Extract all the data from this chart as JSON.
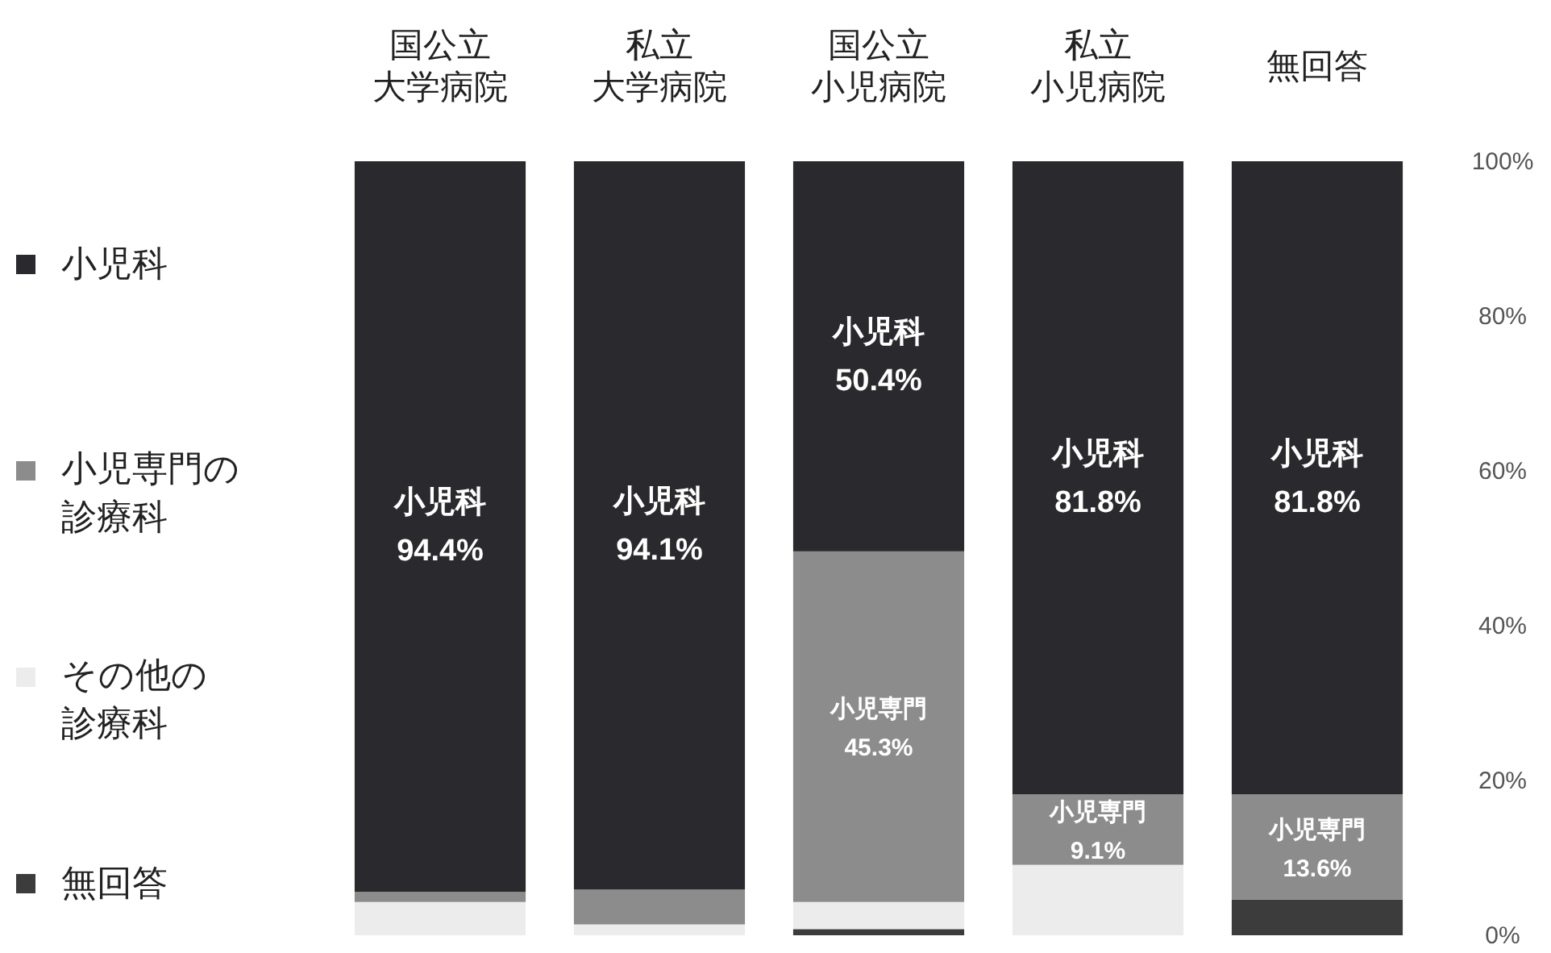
{
  "chart_data": {
    "type": "bar",
    "stacked": true,
    "categories": [
      "国公立大学病院",
      "私立大学病院",
      "国公立小児病院",
      "私立小児病院",
      "無回答"
    ],
    "series": [
      {
        "name": "無回答",
        "color": "#3c3c3c",
        "values": [
          0,
          0,
          0.8,
          0,
          4.6
        ],
        "value_labels": [
          null,
          null,
          null,
          null,
          null
        ]
      },
      {
        "name": "その他の診療科",
        "color": "#ececec",
        "values": [
          4.3,
          1.4,
          3.5,
          9.1,
          0
        ],
        "value_labels": [
          null,
          null,
          null,
          null,
          null
        ]
      },
      {
        "name": "小児専門の診療科",
        "color": "#8c8c8c",
        "values": [
          1.3,
          4.5,
          45.3,
          9.1,
          13.6
        ],
        "value_labels": [
          null,
          null,
          "小児専門 45.3%",
          "小児専門 9.1%",
          "小児専門 13.6%"
        ]
      },
      {
        "name": "小児科",
        "color": "#2a2a2e",
        "values": [
          94.4,
          94.1,
          50.4,
          81.8,
          81.8
        ],
        "value_labels": [
          "小児科 94.4%",
          "小児科 94.1%",
          "小児科 50.4%",
          "小児科 81.8%",
          "小児科 81.8%"
        ]
      }
    ],
    "ylim": [
      0,
      100
    ],
    "yticks": [
      {
        "value": 0,
        "label": "0%"
      },
      {
        "value": 20,
        "label": "20%"
      },
      {
        "value": 40,
        "label": "40%"
      },
      {
        "value": 60,
        "label": "60%"
      },
      {
        "value": 80,
        "label": "80%"
      },
      {
        "value": 100,
        "label": "100%"
      }
    ],
    "legend": "left",
    "grid": false
  }
}
